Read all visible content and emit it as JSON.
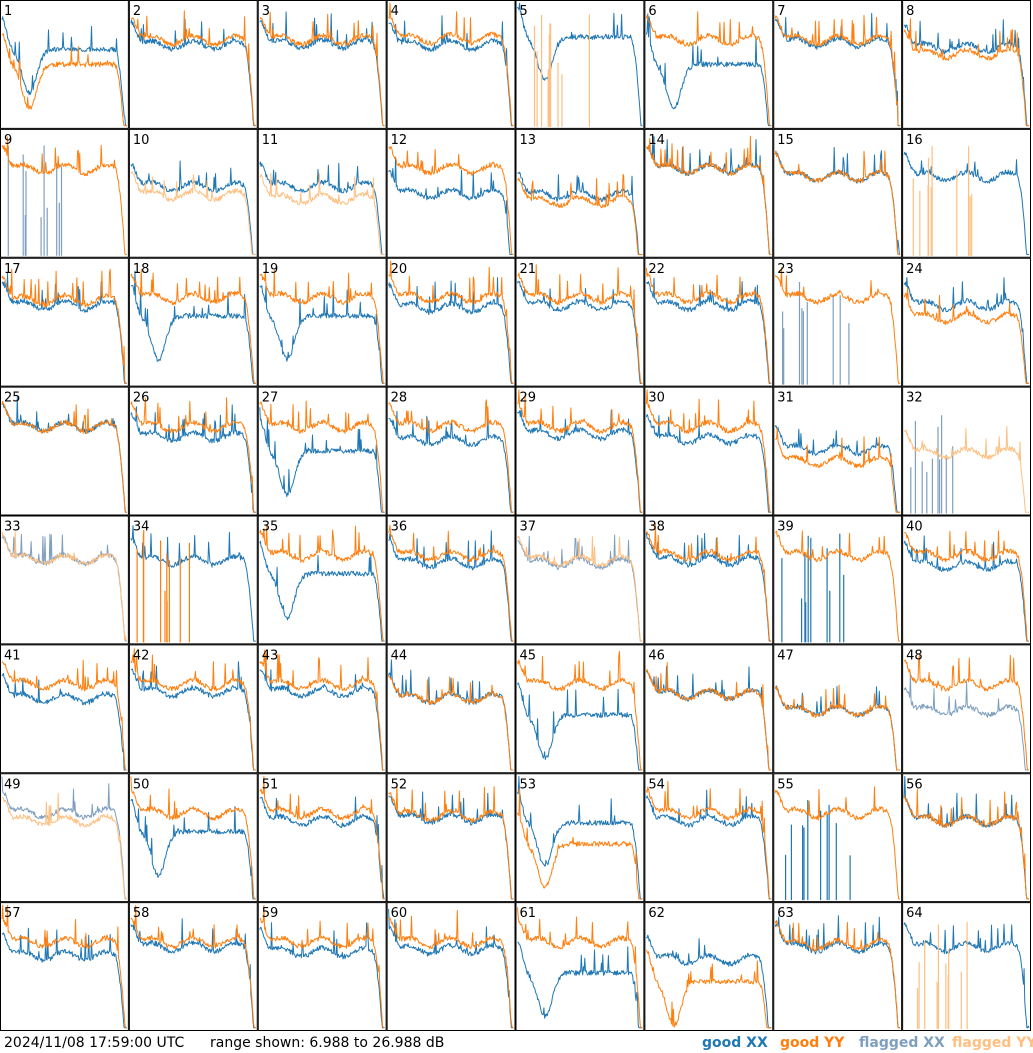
{
  "footer": {
    "timestamp": "2024/11/08 17:59:00 UTC",
    "range_text": "range shown: 6.988 to 26.988 dB"
  },
  "legend": [
    {
      "label": "good XX",
      "color": "#1f77b4"
    },
    {
      "label": "good YY",
      "color": "#ff7f0e"
    },
    {
      "label": "flagged XX",
      "color": "#7f9fbf"
    },
    {
      "label": "flagged YY",
      "color": "#ffbf80"
    }
  ],
  "colors": {
    "good_xx": "#1f77b4",
    "good_yy": "#ff7f0e",
    "flagged_xx": "#7f9fbf",
    "flagged_yy": "#ffbf80"
  },
  "chart_data": {
    "type": "line",
    "layout": "8x8 small multiples",
    "ylim_db": [
      6.988,
      26.988
    ],
    "x": "channel index (normalized 0 to 1)",
    "panels": [
      {
        "label": "1",
        "xx": "hump",
        "yy": "hump",
        "xx_level": 0.62,
        "yy_level": 0.5,
        "flag_xx": false,
        "flag_yy": false
      },
      {
        "label": "2",
        "xx": "normal",
        "yy": "normal",
        "xx_level": 0.62,
        "yy_level": 0.66,
        "flag_xx": false,
        "flag_yy": false
      },
      {
        "label": "3",
        "xx": "normal",
        "yy": "normal",
        "xx_level": 0.63,
        "yy_level": 0.66,
        "flag_xx": false,
        "flag_yy": false
      },
      {
        "label": "4",
        "xx": "normal",
        "yy": "normal",
        "xx_level": 0.62,
        "yy_level": 0.67,
        "flag_xx": false,
        "flag_yy": false
      },
      {
        "label": "5",
        "xx": "hump",
        "yy": "spikes",
        "xx_level": 0.72,
        "yy_level": 0.0,
        "flag_xx": false,
        "flag_yy": true
      },
      {
        "label": "6",
        "xx": "hump",
        "yy": "normal",
        "xx_level": 0.5,
        "yy_level": 0.66,
        "flag_xx": false,
        "flag_yy": false
      },
      {
        "label": "7",
        "xx": "normal",
        "yy": "normal",
        "xx_level": 0.64,
        "yy_level": 0.66,
        "flag_xx": false,
        "flag_yy": false
      },
      {
        "label": "8",
        "xx": "normal",
        "yy": "normal",
        "xx_level": 0.6,
        "yy_level": 0.55,
        "flag_xx": false,
        "flag_yy": false
      },
      {
        "label": "9",
        "xx": "spikes",
        "yy": "normal",
        "xx_level": 0.0,
        "yy_level": 0.66,
        "flag_xx": true,
        "flag_yy": false
      },
      {
        "label": "10",
        "xx": "normal",
        "yy": "normal",
        "xx_level": 0.52,
        "yy_level": 0.45,
        "flag_xx": false,
        "flag_yy": true
      },
      {
        "label": "11",
        "xx": "normal",
        "yy": "normal",
        "xx_level": 0.52,
        "yy_level": 0.42,
        "flag_xx": false,
        "flag_yy": true
      },
      {
        "label": "12",
        "xx": "normal",
        "yy": "normal",
        "xx_level": 0.46,
        "yy_level": 0.66,
        "flag_xx": false,
        "flag_yy": false
      },
      {
        "label": "13",
        "xx": "normal",
        "yy": "normal",
        "xx_level": 0.45,
        "yy_level": 0.4,
        "flag_xx": false,
        "flag_yy": false
      },
      {
        "label": "14",
        "xx": "normal",
        "yy": "normal",
        "xx_level": 0.66,
        "yy_level": 0.66,
        "flag_xx": false,
        "flag_yy": false
      },
      {
        "label": "15",
        "xx": "normal",
        "yy": "normal",
        "xx_level": 0.6,
        "yy_level": 0.6,
        "flag_xx": false,
        "flag_yy": false
      },
      {
        "label": "16",
        "xx": "normal",
        "yy": "spikes",
        "xx_level": 0.6,
        "yy_level": 0.0,
        "flag_xx": false,
        "flag_yy": true
      },
      {
        "label": "17",
        "xx": "normal",
        "yy": "normal",
        "xx_level": 0.6,
        "yy_level": 0.64,
        "flag_xx": false,
        "flag_yy": false
      },
      {
        "label": "18",
        "xx": "hump",
        "yy": "normal",
        "xx_level": 0.55,
        "yy_level": 0.66,
        "flag_xx": false,
        "flag_yy": false
      },
      {
        "label": "19",
        "xx": "hump",
        "yy": "normal",
        "xx_level": 0.55,
        "yy_level": 0.66,
        "flag_xx": false,
        "flag_yy": false
      },
      {
        "label": "20",
        "xx": "normal",
        "yy": "normal",
        "xx_level": 0.58,
        "yy_level": 0.66,
        "flag_xx": false,
        "flag_yy": false
      },
      {
        "label": "21",
        "xx": "normal",
        "yy": "normal",
        "xx_level": 0.6,
        "yy_level": 0.66,
        "flag_xx": false,
        "flag_yy": false
      },
      {
        "label": "22",
        "xx": "normal",
        "yy": "normal",
        "xx_level": 0.6,
        "yy_level": 0.66,
        "flag_xx": false,
        "flag_yy": false
      },
      {
        "label": "23",
        "xx": "spikes",
        "yy": "normal",
        "xx_level": 0.0,
        "yy_level": 0.66,
        "flag_xx": true,
        "flag_yy": false
      },
      {
        "label": "24",
        "xx": "normal",
        "yy": "normal",
        "xx_level": 0.6,
        "yy_level": 0.5,
        "flag_xx": false,
        "flag_yy": false
      },
      {
        "label": "25",
        "xx": "normal",
        "yy": "normal",
        "xx_level": 0.66,
        "yy_level": 0.66,
        "flag_xx": false,
        "flag_yy": false
      },
      {
        "label": "26",
        "xx": "normal",
        "yy": "normal",
        "xx_level": 0.58,
        "yy_level": 0.66,
        "flag_xx": false,
        "flag_yy": false
      },
      {
        "label": "27",
        "xx": "hump",
        "yy": "normal",
        "xx_level": 0.5,
        "yy_level": 0.66,
        "flag_xx": false,
        "flag_yy": false
      },
      {
        "label": "28",
        "xx": "normal",
        "yy": "normal",
        "xx_level": 0.55,
        "yy_level": 0.66,
        "flag_xx": false,
        "flag_yy": false
      },
      {
        "label": "29",
        "xx": "normal",
        "yy": "normal",
        "xx_level": 0.6,
        "yy_level": 0.66,
        "flag_xx": false,
        "flag_yy": false
      },
      {
        "label": "30",
        "xx": "normal",
        "yy": "normal",
        "xx_level": 0.56,
        "yy_level": 0.66,
        "flag_xx": false,
        "flag_yy": false
      },
      {
        "label": "31",
        "xx": "normal",
        "yy": "normal",
        "xx_level": 0.48,
        "yy_level": 0.38,
        "flag_xx": false,
        "flag_yy": false
      },
      {
        "label": "32",
        "xx": "spikes",
        "yy": "normal",
        "xx_level": 0.0,
        "yy_level": 0.45,
        "flag_xx": true,
        "flag_yy": true
      },
      {
        "label": "33",
        "xx": "normal",
        "yy": "normal",
        "xx_level": 0.63,
        "yy_level": 0.63,
        "flag_xx": true,
        "flag_yy": true
      },
      {
        "label": "34",
        "xx": "normal",
        "yy": "spikes",
        "xx_level": 0.62,
        "yy_level": 0.0,
        "flag_xx": false,
        "flag_yy": false
      },
      {
        "label": "35",
        "xx": "hump",
        "yy": "normal",
        "xx_level": 0.55,
        "yy_level": 0.66,
        "flag_xx": false,
        "flag_yy": false
      },
      {
        "label": "36",
        "xx": "normal",
        "yy": "normal",
        "xx_level": 0.6,
        "yy_level": 0.66,
        "flag_xx": false,
        "flag_yy": false
      },
      {
        "label": "37",
        "xx": "normal",
        "yy": "normal",
        "xx_level": 0.6,
        "yy_level": 0.62,
        "flag_xx": true,
        "flag_yy": true
      },
      {
        "label": "38",
        "xx": "normal",
        "yy": "normal",
        "xx_level": 0.62,
        "yy_level": 0.66,
        "flag_xx": false,
        "flag_yy": false
      },
      {
        "label": "39",
        "xx": "spikes",
        "yy": "normal",
        "xx_level": 0.0,
        "yy_level": 0.66,
        "flag_xx": false,
        "flag_yy": false
      },
      {
        "label": "40",
        "xx": "normal",
        "yy": "normal",
        "xx_level": 0.58,
        "yy_level": 0.66,
        "flag_xx": false,
        "flag_yy": false
      },
      {
        "label": "41",
        "xx": "normal",
        "yy": "normal",
        "xx_level": 0.55,
        "yy_level": 0.66,
        "flag_xx": false,
        "flag_yy": false
      },
      {
        "label": "42",
        "xx": "normal",
        "yy": "normal",
        "xx_level": 0.6,
        "yy_level": 0.66,
        "flag_xx": false,
        "flag_yy": false
      },
      {
        "label": "43",
        "xx": "normal",
        "yy": "normal",
        "xx_level": 0.6,
        "yy_level": 0.66,
        "flag_xx": false,
        "flag_yy": false
      },
      {
        "label": "44",
        "xx": "normal",
        "yy": "normal",
        "xx_level": 0.55,
        "yy_level": 0.55,
        "flag_xx": false,
        "flag_yy": false
      },
      {
        "label": "45",
        "xx": "hump",
        "yy": "normal",
        "xx_level": 0.45,
        "yy_level": 0.66,
        "flag_xx": false,
        "flag_yy": false
      },
      {
        "label": "46",
        "xx": "normal",
        "yy": "normal",
        "xx_level": 0.58,
        "yy_level": 0.58,
        "flag_xx": false,
        "flag_yy": false
      },
      {
        "label": "47",
        "xx": "normal",
        "yy": "normal",
        "xx_level": 0.45,
        "yy_level": 0.45,
        "flag_xx": false,
        "flag_yy": false
      },
      {
        "label": "48",
        "xx": "normal",
        "yy": "normal",
        "xx_level": 0.45,
        "yy_level": 0.66,
        "flag_xx": true,
        "flag_yy": false
      },
      {
        "label": "49",
        "xx": "normal",
        "yy": "normal",
        "xx_level": 0.66,
        "yy_level": 0.6,
        "flag_xx": true,
        "flag_yy": true
      },
      {
        "label": "50",
        "xx": "hump",
        "yy": "normal",
        "xx_level": 0.55,
        "yy_level": 0.66,
        "flag_xx": false,
        "flag_yy": false
      },
      {
        "label": "51",
        "xx": "normal",
        "yy": "normal",
        "xx_level": 0.6,
        "yy_level": 0.66,
        "flag_xx": false,
        "flag_yy": false
      },
      {
        "label": "52",
        "xx": "normal",
        "yy": "normal",
        "xx_level": 0.62,
        "yy_level": 0.64,
        "flag_xx": false,
        "flag_yy": false
      },
      {
        "label": "53",
        "xx": "hump",
        "yy": "hump",
        "xx_level": 0.62,
        "yy_level": 0.45,
        "flag_xx": false,
        "flag_yy": false
      },
      {
        "label": "54",
        "xx": "normal",
        "yy": "normal",
        "xx_level": 0.6,
        "yy_level": 0.66,
        "flag_xx": false,
        "flag_yy": false
      },
      {
        "label": "55",
        "xx": "spikes",
        "yy": "normal",
        "xx_level": 0.0,
        "yy_level": 0.66,
        "flag_xx": false,
        "flag_yy": false
      },
      {
        "label": "56",
        "xx": "normal",
        "yy": "normal",
        "xx_level": 0.6,
        "yy_level": 0.6,
        "flag_xx": false,
        "flag_yy": false
      },
      {
        "label": "57",
        "xx": "normal",
        "yy": "normal",
        "xx_level": 0.55,
        "yy_level": 0.66,
        "flag_xx": false,
        "flag_yy": false
      },
      {
        "label": "58",
        "xx": "normal",
        "yy": "normal",
        "xx_level": 0.62,
        "yy_level": 0.66,
        "flag_xx": false,
        "flag_yy": false
      },
      {
        "label": "59",
        "xx": "normal",
        "yy": "normal",
        "xx_level": 0.58,
        "yy_level": 0.66,
        "flag_xx": false,
        "flag_yy": false
      },
      {
        "label": "60",
        "xx": "normal",
        "yy": "normal",
        "xx_level": 0.6,
        "yy_level": 0.66,
        "flag_xx": false,
        "flag_yy": false
      },
      {
        "label": "61",
        "xx": "hump",
        "yy": "normal",
        "xx_level": 0.45,
        "yy_level": 0.66,
        "flag_xx": false,
        "flag_yy": false
      },
      {
        "label": "62",
        "xx": "normal",
        "yy": "hump",
        "xx_level": 0.52,
        "yy_level": 0.38,
        "flag_xx": false,
        "flag_yy": false
      },
      {
        "label": "63",
        "xx": "normal",
        "yy": "normal",
        "xx_level": 0.62,
        "yy_level": 0.64,
        "flag_xx": false,
        "flag_yy": false
      },
      {
        "label": "64",
        "xx": "normal",
        "yy": "spikes",
        "xx_level": 0.62,
        "yy_level": 0.0,
        "flag_xx": false,
        "flag_yy": true
      }
    ]
  }
}
